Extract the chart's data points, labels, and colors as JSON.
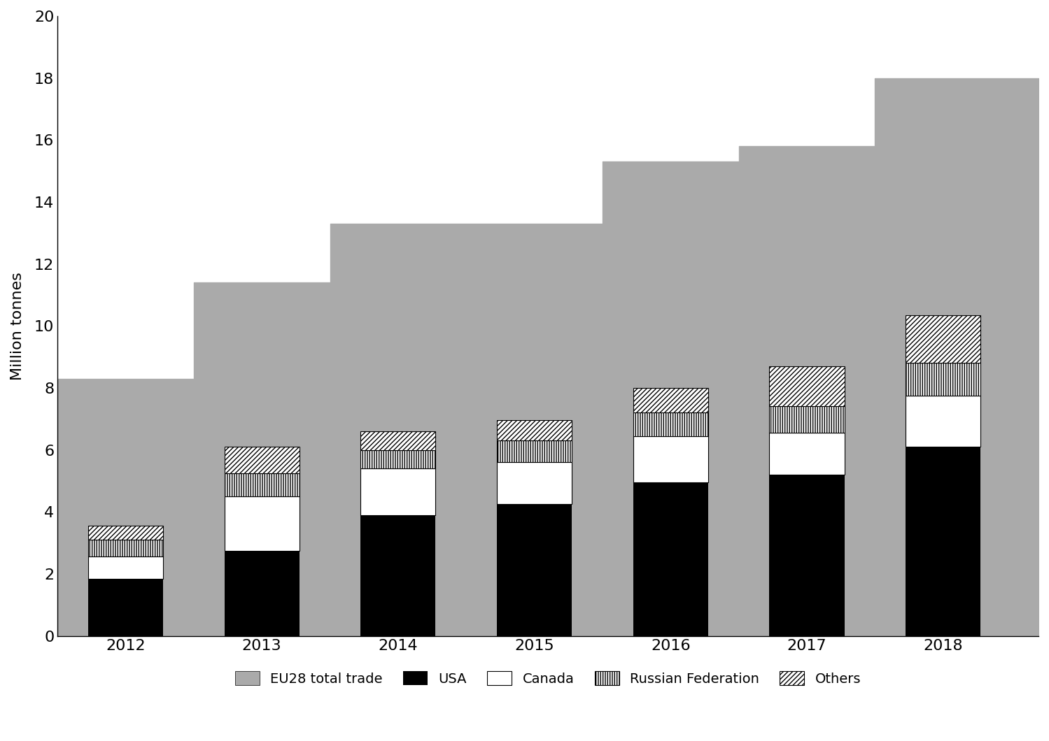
{
  "years": [
    2012,
    2013,
    2014,
    2015,
    2016,
    2017,
    2018
  ],
  "eu28_total": [
    8.3,
    11.4,
    13.3,
    13.3,
    15.3,
    15.8,
    18.0
  ],
  "usa": [
    1.85,
    2.75,
    3.9,
    4.25,
    4.95,
    5.2,
    6.1
  ],
  "canada": [
    0.7,
    1.75,
    1.5,
    1.35,
    1.5,
    1.35,
    1.65
  ],
  "russia": [
    0.55,
    0.75,
    0.6,
    0.7,
    0.75,
    0.85,
    1.05
  ],
  "others": [
    0.45,
    0.85,
    0.6,
    0.65,
    0.8,
    1.3,
    1.55
  ],
  "area_color": "#aaaaaa",
  "usa_color": "#000000",
  "canada_color": "#ffffff",
  "ylabel": "Million tonnes",
  "ylim": [
    0,
    20
  ],
  "yticks": [
    0,
    2,
    4,
    6,
    8,
    10,
    12,
    14,
    16,
    18,
    20
  ],
  "bar_width": 0.55,
  "background_color": "#ffffff",
  "legend_labels": [
    "EU28 total trade",
    "USA",
    "Canada",
    "Russian Federation",
    "Others"
  ]
}
